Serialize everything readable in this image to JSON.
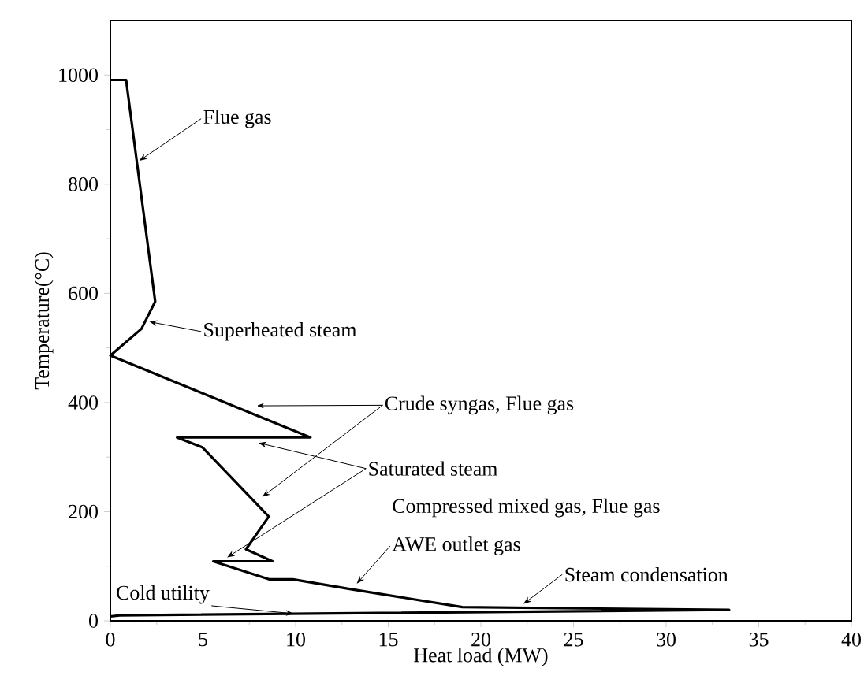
{
  "chart_data": {
    "type": "line",
    "xlabel": "Heat load (MW)",
    "ylabel": "Temperature(°C)",
    "xlim": [
      0,
      40
    ],
    "ylim": [
      0,
      1100
    ],
    "xticks": [
      0,
      5,
      10,
      15,
      20,
      25,
      30,
      35,
      40
    ],
    "yticks": [
      0,
      200,
      400,
      600,
      800,
      1000
    ],
    "series": [
      {
        "color": "#000000",
        "x": [
          0,
          0.85,
          2.42,
          1.68,
          0,
          10.8,
          3.6,
          4.96,
          8.55,
          7.32,
          8.75,
          5.55,
          8.56,
          9.85,
          12.98,
          19.0,
          33.4,
          0.5,
          0
        ],
        "values": [
          991,
          991,
          585,
          535,
          486,
          336,
          336,
          318,
          191,
          131,
          109,
          109,
          76,
          76,
          58,
          25,
          20,
          10,
          8
        ]
      }
    ],
    "annotations": [
      {
        "text": "Flue gas",
        "x": 1.56,
        "y": 843
      },
      {
        "text": "Superheated steam",
        "x": 2.1,
        "y": 548
      },
      {
        "text": "Crude syngas, Flue gas",
        "x": 7.9,
        "y": 394
      },
      {
        "text": "Saturated steam",
        "x": 8.0,
        "y": 326
      },
      "Compressed mixed gas, Flue gas",
      {
        "text": "AWE outlet gas",
        "x": 13.3,
        "y": 68
      },
      {
        "text": "Steam condensation",
        "x": 22.3,
        "y": 31
      },
      {
        "text": "Cold utility",
        "x": 9.9,
        "y": 13
      }
    ]
  }
}
